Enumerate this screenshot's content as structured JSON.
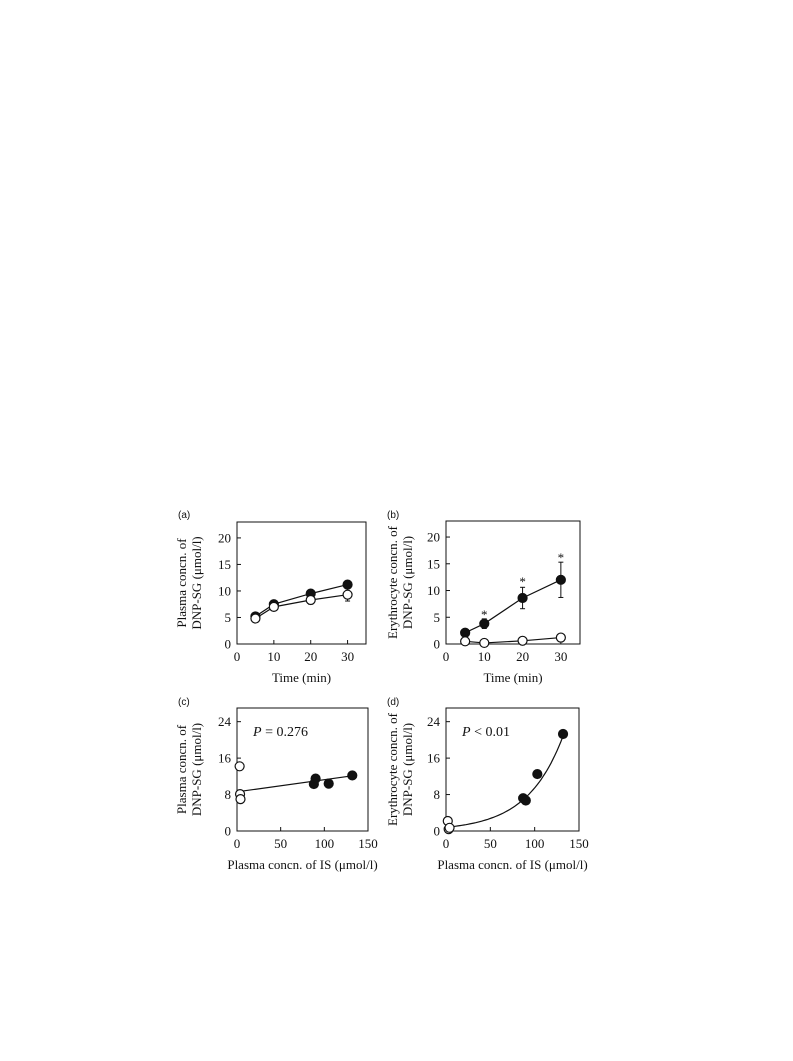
{
  "figure": {
    "chart_data": [
      {
        "panel": "(a)",
        "type": "line",
        "xlabel": "Time (min)",
        "ylabel": [
          "Plasma concn. of",
          "DNP-SG (μmol/l)"
        ],
        "xlim": [
          0,
          35
        ],
        "ylim": [
          0,
          23
        ],
        "xticks": [
          0,
          10,
          20,
          30
        ],
        "yticks": [
          0,
          5,
          10,
          15,
          20
        ],
        "series": [
          {
            "marker": "filled",
            "x": [
              5,
              10,
              20,
              30
            ],
            "y": [
              5.2,
              7.5,
              9.5,
              11.2
            ],
            "err": [
              0.3,
              0.4,
              0.5,
              0.6
            ]
          },
          {
            "marker": "open",
            "x": [
              5,
              10,
              20,
              30
            ],
            "y": [
              4.8,
              7.0,
              8.3,
              9.3
            ],
            "err": [
              0.3,
              0.5,
              0.8,
              1.2
            ]
          }
        ],
        "annotations": []
      },
      {
        "panel": "(b)",
        "type": "line",
        "xlabel": "Time (min)",
        "ylabel": [
          "Erythrocyte concn. of",
          "DNP-SG (μmol/l)"
        ],
        "xlim": [
          0,
          35
        ],
        "ylim": [
          0,
          23
        ],
        "xticks": [
          0,
          10,
          20,
          30
        ],
        "yticks": [
          0,
          5,
          10,
          15,
          20
        ],
        "series": [
          {
            "marker": "filled",
            "x": [
              5,
              10,
              20,
              30
            ],
            "y": [
              2.1,
              3.8,
              8.6,
              12.0
            ],
            "err": [
              0.4,
              0.9,
              2.0,
              3.3
            ]
          },
          {
            "marker": "open",
            "x": [
              5,
              10,
              20,
              30
            ],
            "y": [
              0.5,
              0.2,
              0.6,
              1.2
            ],
            "err": [
              0.2,
              0.2,
              0.3,
              0.3
            ]
          }
        ],
        "annotations": [
          {
            "text": "*",
            "x": 10,
            "y": 5.8
          },
          {
            "text": "*",
            "x": 20,
            "y": 12.0
          },
          {
            "text": "*",
            "x": 30,
            "y": 16.5
          }
        ]
      },
      {
        "panel": "(c)",
        "type": "scatter",
        "xlabel": "Plasma concn. of  IS (μmol/l)",
        "ylabel": [
          "Plasma concn. of",
          "DNP-SG (μmol/l)"
        ],
        "xlim": [
          0,
          150
        ],
        "ylim": [
          0,
          27
        ],
        "xticks": [
          0,
          50,
          100,
          150
        ],
        "yticks": [
          0,
          8,
          16,
          24
        ],
        "p_label": {
          "italic": "P",
          "rest": " = 0.276"
        },
        "fit": {
          "kind": "linear",
          "x": [
            0,
            135
          ],
          "y": [
            8.6,
            12.2
          ]
        },
        "series": [
          {
            "marker": "filled",
            "x": [
              88,
              90,
              105,
              132
            ],
            "y": [
              10.3,
              11.5,
              10.4,
              12.2
            ]
          },
          {
            "marker": "open",
            "x": [
              3,
              3.5,
              4
            ],
            "y": [
              14.2,
              8.1,
              7.0
            ]
          }
        ]
      },
      {
        "panel": "(d)",
        "type": "scatter",
        "xlabel": "Plasma concn. of  IS (μmol/l)",
        "ylabel": [
          "Erythrocyte concn. of",
          "DNP-SG (μmol/l)"
        ],
        "xlim": [
          0,
          150
        ],
        "ylim": [
          0,
          27
        ],
        "xticks": [
          0,
          50,
          100,
          150
        ],
        "yticks": [
          0,
          8,
          16,
          24
        ],
        "p_label": {
          "italic": "P",
          "rest": " < 0.01"
        },
        "fit": {
          "kind": "exponential",
          "a": 0.8,
          "b": 0.0247,
          "x0": 0,
          "x1": 134
        },
        "series": [
          {
            "marker": "filled",
            "x": [
              87,
              90,
              103,
              132
            ],
            "y": [
              7.2,
              6.7,
              12.5,
              21.3
            ]
          },
          {
            "marker": "open",
            "x": [
              2,
              3,
              4
            ],
            "y": [
              2.2,
              0.4,
              0.7
            ]
          }
        ]
      }
    ]
  }
}
